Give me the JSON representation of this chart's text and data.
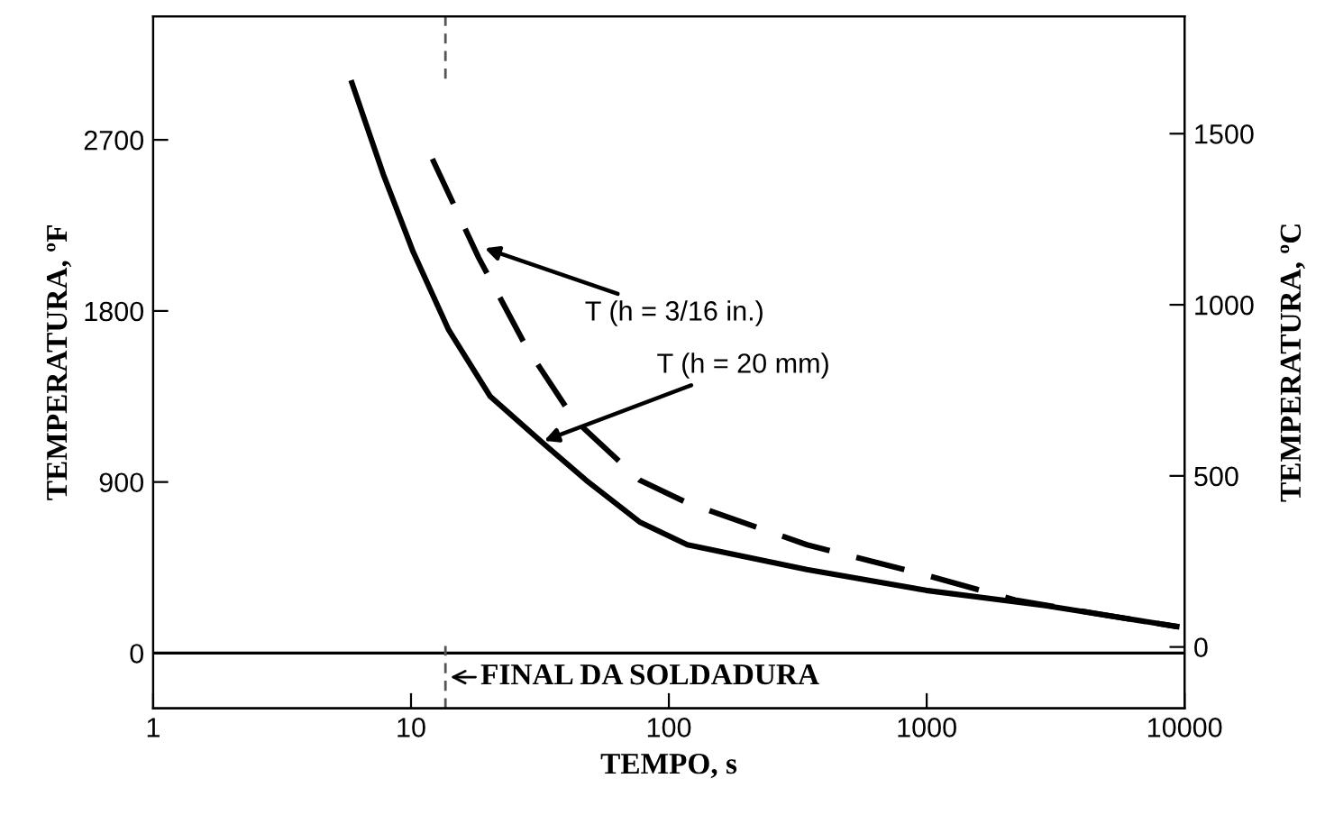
{
  "chart_data": {
    "type": "line",
    "xlabel": "TEMPO, s",
    "ylabel": "TEMPERATURA, ºF",
    "y2label": "TEMPERATURA, ºC",
    "log": "x",
    "grid": false,
    "legend": false,
    "marker": "none",
    "xlim": [
      1,
      10000
    ],
    "xticks": [
      1,
      10,
      100,
      1000,
      10000
    ],
    "ylim": [
      -290,
      3350
    ],
    "yticks": [
      0,
      900,
      1800,
      2700
    ],
    "y2lim": [
      -179,
      1843
    ],
    "y2ticks": [
      0,
      500,
      1000,
      1500
    ],
    "series": [
      {
        "color": "#000000",
        "line_style": "solid",
        "x": [
          5.9,
          7.8,
          10.2,
          14,
          20.3,
          32.8,
          47.7,
          77,
          118,
          343,
          995,
          2886,
          4920,
          9330
        ],
        "values": [
          3000,
          2520,
          2110,
          1700,
          1350,
          1100,
          910,
          690,
          570,
          440,
          330,
          250,
          200,
          140
        ]
      },
      {
        "color": "#000000",
        "line_style": "dashed",
        "x": [
          12.1,
          18.3,
          28,
          42.9,
          77,
          118,
          343,
          995,
          2200,
          4920,
          9330
        ],
        "values": [
          2600,
          2080,
          1610,
          1230,
          910,
          790,
          570,
          410,
          280,
          200,
          140
        ]
      }
    ],
    "ref_lines": [
      {
        "axis": "y",
        "value": 0,
        "color": "#000000",
        "line_style": "solid"
      },
      {
        "axis": "x",
        "value": 13.6,
        "label": "FINAL DA SOLDADURA",
        "color": "#555555",
        "line_style": "dashed"
      }
    ],
    "annotations": [
      {
        "text": "T (h = 3/16 in.)",
        "x": 19.3,
        "y": 2130
      },
      {
        "text": "T (h = 20 mm)",
        "x": 32.8,
        "y": 1117
      }
    ]
  }
}
